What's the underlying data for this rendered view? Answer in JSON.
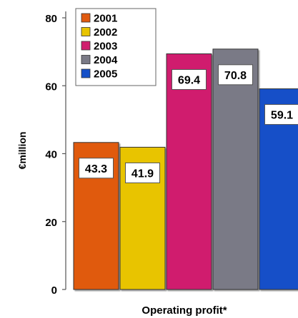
{
  "chart_data": {
    "type": "bar",
    "categories": [
      "2001",
      "2002",
      "2003",
      "2004",
      "2005"
    ],
    "values": [
      43.3,
      41.9,
      69.4,
      70.8,
      59.1
    ],
    "value_labels": [
      "43.3",
      "41.9",
      "69.4",
      "70.8",
      "59.1"
    ],
    "colors": [
      "#e05a10",
      "#e8c400",
      "#d01e6e",
      "#7a7a86",
      "#1550c8"
    ],
    "title": "",
    "xlabel": "Operating profit*",
    "ylabel": "€million",
    "ylim": [
      0,
      80
    ],
    "yticks": [
      "0",
      "20",
      "40",
      "60",
      "80"
    ],
    "grid": false,
    "legend": {
      "placement": "top-left",
      "entries": [
        "2001",
        "2002",
        "2003",
        "2004",
        "2005"
      ]
    }
  }
}
